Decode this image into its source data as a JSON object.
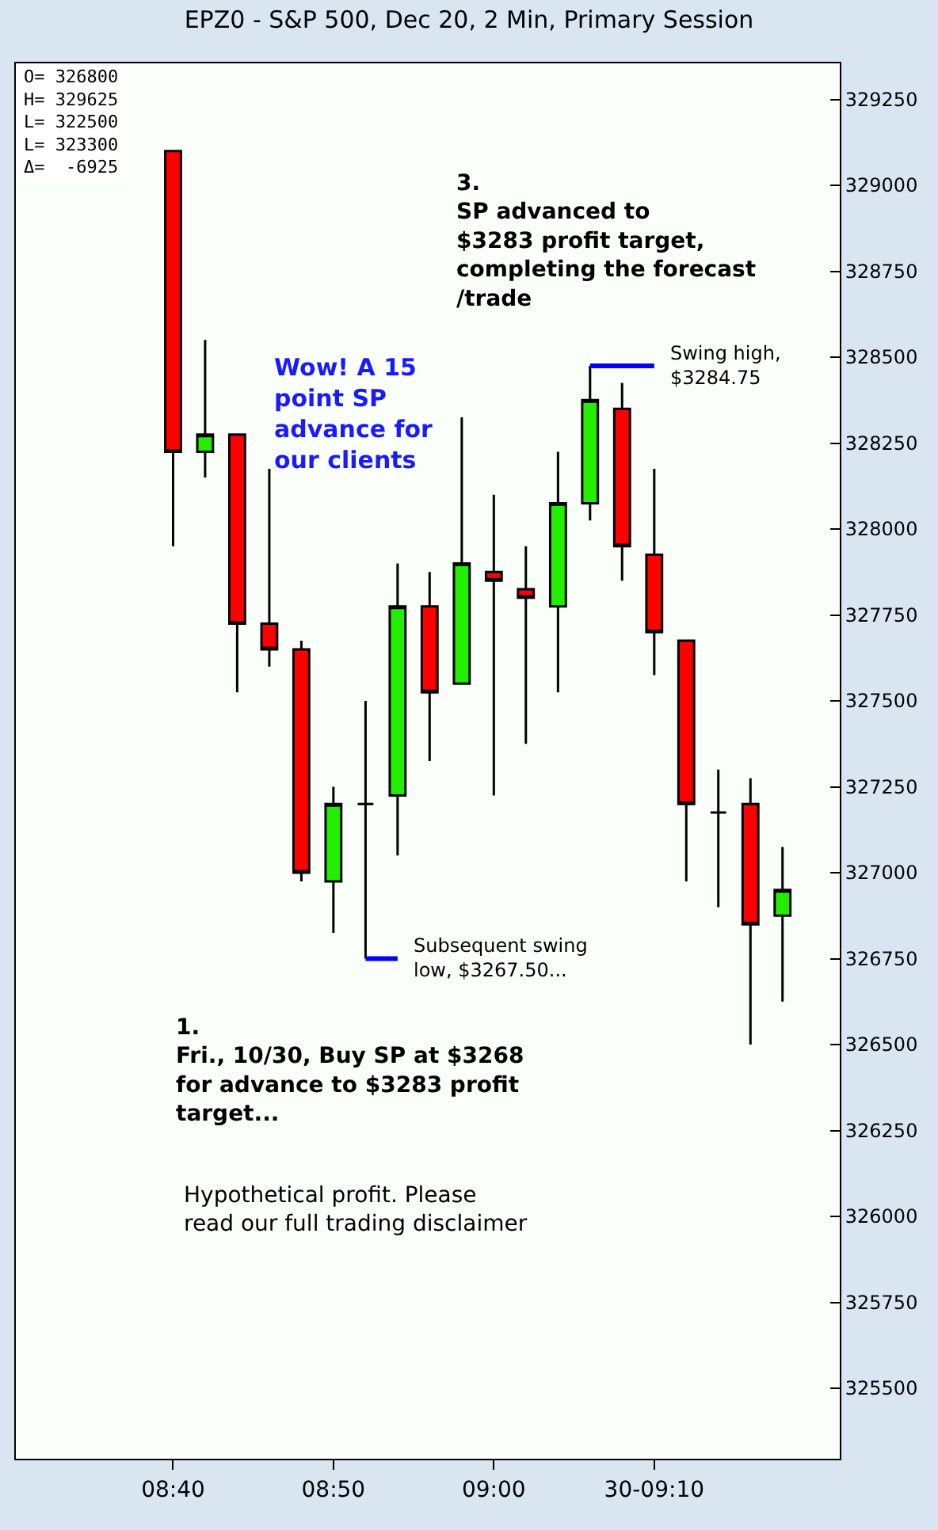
{
  "chart_data": {
    "type": "candlestick",
    "title": "EPZ0 - S&P 500, Dec 20, 2 Min, Primary Session",
    "x": [
      8.6667,
      8.7,
      8.7333,
      8.7667,
      8.8,
      8.8333,
      8.8667,
      8.9,
      8.9333,
      8.9667,
      9.0,
      9.0333,
      9.0667,
      9.1,
      9.1333,
      9.1667,
      9.2,
      9.2333,
      9.2667,
      9.3
    ],
    "ohlc": [
      [
        329100,
        329100,
        327950,
        328225
      ],
      [
        328225,
        328550,
        328150,
        328275
      ],
      [
        328275,
        328275,
        327525,
        327725
      ],
      [
        327725,
        328175,
        327600,
        327650
      ],
      [
        327650,
        327675,
        326975,
        327000
      ],
      [
        326975,
        327250,
        326825,
        327200
      ],
      [
        327200,
        327500,
        326750,
        327200
      ],
      [
        327225,
        327900,
        327050,
        327775
      ],
      [
        327775,
        327875,
        327325,
        327525
      ],
      [
        327550,
        328325,
        327550,
        327900
      ],
      [
        327875,
        328100,
        327225,
        327850
      ],
      [
        327825,
        327950,
        327375,
        327800
      ],
      [
        327775,
        328225,
        327525,
        328075
      ],
      [
        328075,
        328475,
        328025,
        328375
      ],
      [
        328350,
        328425,
        327850,
        327950
      ],
      [
        327925,
        328175,
        327575,
        327700
      ],
      [
        327675,
        327675,
        326975,
        327200
      ],
      [
        327175,
        327300,
        326900,
        327175
      ],
      [
        327200,
        327275,
        326500,
        326850
      ],
      [
        326875,
        327075,
        326625,
        326950
      ]
    ],
    "series": [
      {
        "type": "line",
        "x": [
          9.1,
          9.1667
        ],
        "values": [
          328475,
          328475
        ],
        "color": "#0000ff"
      },
      {
        "type": "line",
        "x": [
          8.8667,
          8.9
        ],
        "values": [
          326750,
          326750
        ],
        "color": "#0000ff"
      }
    ],
    "xlim": [
      8.5033,
      9.3595
    ],
    "xticks": [
      {
        "value": 8.6667,
        "label": "08:40"
      },
      {
        "value": 8.8333,
        "label": "08:50"
      },
      {
        "value": 9.0,
        "label": "09:00"
      },
      {
        "value": 9.1667,
        "label": "30-09:10"
      }
    ],
    "ylim": [
      325295,
      329355
    ],
    "yticks": [
      325500,
      325750,
      326000,
      326250,
      326500,
      326750,
      327000,
      327250,
      327500,
      327750,
      328000,
      328250,
      328500,
      328750,
      329000,
      329250
    ],
    "annotations": [
      "O= 326800\nH= 329625\nL= 322500\nL= 323300\nΔ=  -6925",
      "Wow! A 15\npoint SP\nadvance for\nour clients",
      "3.\nSP advanced to\n$3283 profit target,\ncompleting the forecast\n/trade",
      "1.\nFri., 10/30, Buy SP at $3268\nfor advance to $3283 profit\ntarget...",
      "Hypothetical profit. Please\nread our full trading disclaimer",
      {
        "text": "Swing high,\n$3284.75",
        "x": 9.1667,
        "y": 328475
      },
      {
        "text": "Subsequent swing\nlow, $3267.50...",
        "x": 8.9,
        "y": 326750
      }
    ]
  }
}
